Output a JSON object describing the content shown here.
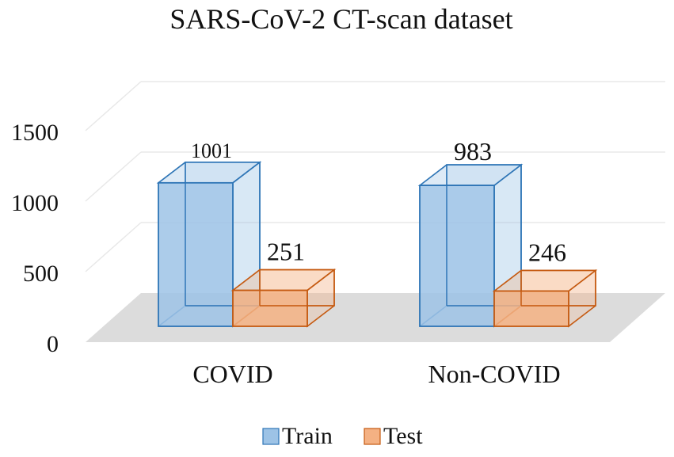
{
  "chart_data": {
    "type": "bar",
    "title": "SARS-CoV-2 CT-scan dataset",
    "categories": [
      "COVID",
      "Non-COVID"
    ],
    "series": [
      {
        "name": "Train",
        "values": [
          1001,
          983
        ],
        "color": "#9dc3e6",
        "edge": "#2e75b6"
      },
      {
        "name": "Test",
        "values": [
          251,
          246
        ],
        "color": "#f4b183",
        "edge": "#c55a11"
      }
    ],
    "yticks": [
      "0",
      "500",
      "1000",
      "1500"
    ],
    "ylim": [
      0,
      1500
    ],
    "grid": true,
    "legend_position": "bottom",
    "style": "3d-column"
  }
}
